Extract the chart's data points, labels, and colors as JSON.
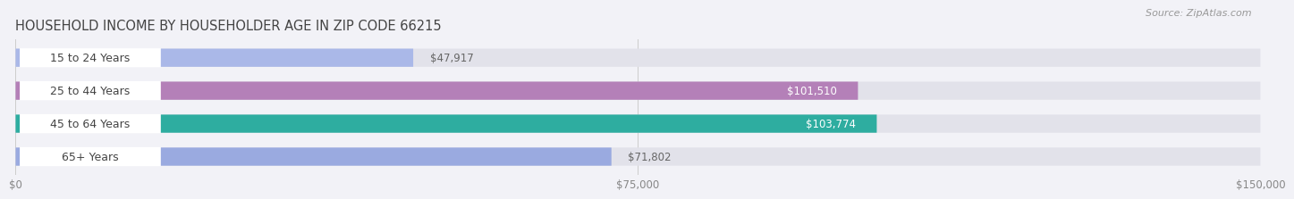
{
  "title": "HOUSEHOLD INCOME BY HOUSEHOLDER AGE IN ZIP CODE 66215",
  "source": "Source: ZipAtlas.com",
  "categories": [
    "15 to 24 Years",
    "25 to 44 Years",
    "45 to 64 Years",
    "65+ Years"
  ],
  "values": [
    47917,
    101510,
    103774,
    71802
  ],
  "bar_colors": [
    "#aab8e8",
    "#b480b8",
    "#2eada0",
    "#9aaae0"
  ],
  "label_texts": [
    "$47,917",
    "$101,510",
    "$103,774",
    "$71,802"
  ],
  "label_inside": [
    false,
    true,
    true,
    false
  ],
  "label_color_inside": "#ffffff",
  "label_color_outside": "#666666",
  "xlim": [
    0,
    150000
  ],
  "xticks": [
    0,
    75000,
    150000
  ],
  "xtick_labels": [
    "$0",
    "$75,000",
    "$150,000"
  ],
  "background_color": "#f2f2f7",
  "bar_bg_color": "#e2e2ea",
  "pill_bg_color": "#ffffff",
  "category_text_color": "#444444",
  "title_fontsize": 10.5,
  "source_fontsize": 8,
  "label_fontsize": 8.5,
  "category_fontsize": 9
}
